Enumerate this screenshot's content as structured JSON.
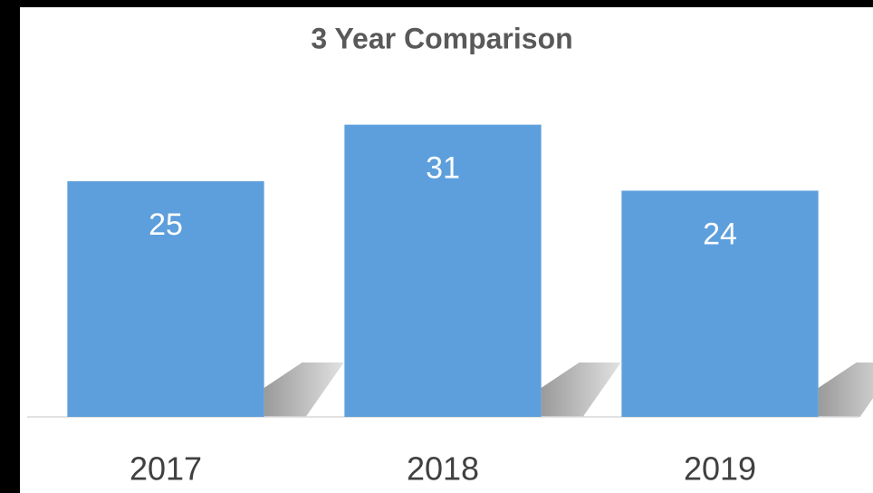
{
  "chart_data": {
    "type": "bar",
    "title": "3 Year Comparison",
    "categories": [
      "2017",
      "2018",
      "2019"
    ],
    "values": [
      25,
      31,
      24
    ],
    "color": "#5d9fdc",
    "ylim": [
      0,
      35
    ]
  }
}
